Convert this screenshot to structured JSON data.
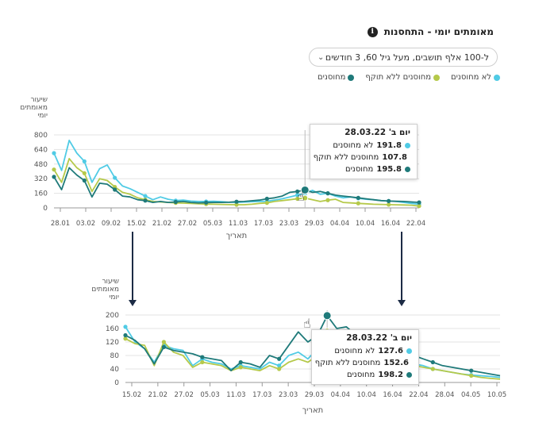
{
  "header": {
    "title": "מאומתים יומי - התחסנות",
    "info_icon": "i",
    "dropdown_value": "ל-100 אלף תושבים, מעל גיל 60, 3 חודשים",
    "dropdown_icon": "chevron-down"
  },
  "legend": [
    {
      "label": "לא מחוסנים",
      "color": "#50cbe5"
    },
    {
      "label": "מחוסנים ללא תוקף",
      "color": "#b5c94a"
    },
    {
      "label": "מחוסנים",
      "color": "#1f7a7a"
    }
  ],
  "colors": {
    "unvaccinated": "#50cbe5",
    "expired": "#b5c94a",
    "vaccinated": "#1f7a7a",
    "arrow": "#1c2b45"
  },
  "chart_data": [
    {
      "type": "line",
      "ylabel": "שיעור מאומתים יומי",
      "xlabel": "תאריך",
      "ylim": [
        0,
        800
      ],
      "yticks": [
        0,
        160,
        320,
        480,
        640,
        800
      ],
      "xticks": [
        "28.01",
        "03.02",
        "09.02",
        "15.02",
        "21.02",
        "27.02",
        "05.03",
        "11.03",
        "17.03",
        "23.03",
        "29.03",
        "04.04",
        "10.04",
        "16.04",
        "22.04"
      ],
      "x_range_days": [
        0,
        88
      ],
      "series": [
        {
          "name": "לא מחוסנים",
          "values": [
            600,
            410,
            740,
            600,
            510,
            280,
            430,
            470,
            330,
            240,
            210,
            170,
            130,
            90,
            120,
            95,
            80,
            85,
            75,
            70,
            70,
            72,
            68,
            62,
            60,
            64,
            68,
            70,
            72,
            85,
            100,
            120,
            140,
            160,
            191.8,
            150,
            160,
            130,
            110,
            120,
            105,
            95,
            90,
            80,
            75,
            70,
            60,
            50,
            40
          ]
        },
        {
          "name": "מחוסנים ללא תוקף",
          "values": [
            420,
            280,
            540,
            440,
            380,
            180,
            320,
            300,
            230,
            170,
            150,
            110,
            90,
            70,
            65,
            60,
            55,
            52,
            50,
            45,
            42,
            40,
            38,
            36,
            35,
            35,
            40,
            50,
            55,
            70,
            80,
            90,
            100,
            107.8,
            90,
            70,
            85,
            95,
            60,
            55,
            50,
            45,
            40,
            38,
            36,
            34,
            32,
            30,
            20
          ]
        },
        {
          "name": "מחוסנים",
          "values": [
            340,
            200,
            440,
            360,
            300,
            120,
            270,
            260,
            200,
            130,
            120,
            90,
            80,
            60,
            70,
            60,
            65,
            70,
            60,
            55,
            58,
            60,
            60,
            62,
            68,
            70,
            78,
            85,
            100,
            110,
            130,
            170,
            180,
            195.8,
            170,
            180,
            160,
            140,
            130,
            120,
            110,
            100,
            90,
            80,
            75,
            72,
            70,
            65,
            60
          ]
        }
      ],
      "tooltip": {
        "date": "יום ב' 28.03.22",
        "rows": [
          {
            "value": "191.8",
            "label": "לא מחוסנים",
            "color": "#50cbe5"
          },
          {
            "value": "107.8",
            "label": "מחוסנים ללא תוקף",
            "color": "#b5c94a"
          },
          {
            "value": "195.8",
            "label": "מחוסנים",
            "color": "#1f7a7a"
          }
        ]
      }
    },
    {
      "type": "line",
      "ylabel": "שיעור מאומתים יומי",
      "xlabel": "תאריך",
      "ylim": [
        0,
        200
      ],
      "yticks": [
        0,
        40,
        80,
        120,
        160,
        200
      ],
      "xticks": [
        "15.02",
        "21.02",
        "27.02",
        "05.03",
        "11.03",
        "17.03",
        "23.03",
        "29.03",
        "04.04",
        "10.04",
        "16.04",
        "22.04",
        "28.04",
        "04.05",
        "10.05"
      ],
      "series": [
        {
          "name": "לא מחוסנים",
          "values": [
            165,
            120,
            100,
            60,
            110,
            100,
            95,
            50,
            70,
            60,
            55,
            40,
            50,
            45,
            40,
            60,
            50,
            80,
            90,
            70,
            100,
            127.6,
            120,
            110,
            100,
            90,
            85,
            80,
            70,
            60,
            55,
            50,
            40,
            35,
            30,
            25,
            22,
            20,
            18,
            15
          ]
        },
        {
          "name": "מחוסנים ללא תוקף",
          "values": [
            130,
            115,
            110,
            50,
            120,
            90,
            80,
            45,
            60,
            55,
            50,
            35,
            45,
            40,
            35,
            50,
            40,
            60,
            70,
            60,
            80,
            152.6,
            100,
            90,
            80,
            75,
            70,
            65,
            60,
            55,
            50,
            45,
            40,
            35,
            30,
            25,
            20,
            15,
            12,
            10
          ]
        },
        {
          "name": "מחוסנים",
          "values": [
            140,
            125,
            100,
            55,
            105,
            95,
            90,
            85,
            75,
            70,
            65,
            35,
            60,
            55,
            45,
            80,
            70,
            110,
            150,
            120,
            140,
            198.2,
            160,
            165,
            140,
            130,
            120,
            110,
            100,
            90,
            80,
            70,
            60,
            50,
            45,
            40,
            35,
            30,
            25,
            20
          ]
        }
      ],
      "tooltip": {
        "date": "יום ב' 28.03.22",
        "rows": [
          {
            "value": "127.6",
            "label": "לא מחוסנים",
            "color": "#50cbe5"
          },
          {
            "value": "152.6",
            "label": "מחוסנים ללא תוקף",
            "color": "#b5c94a"
          },
          {
            "value": "198.2",
            "label": "מחוסנים",
            "color": "#1f7a7a"
          }
        ]
      }
    }
  ]
}
